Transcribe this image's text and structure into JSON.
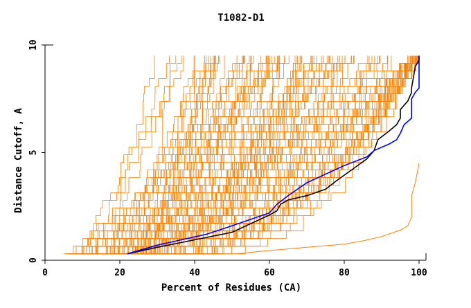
{
  "chart_data": {
    "type": "line",
    "title": "T1082-D1",
    "xlabel": "Percent of Residues (CA)",
    "ylabel": "Distance Cutoff, A",
    "xlim": [
      0,
      100
    ],
    "ylim": [
      0,
      10
    ],
    "x_ticks": [
      "0",
      "20",
      "40",
      "60",
      "80",
      "100"
    ],
    "y_ticks": [
      "0",
      "5",
      "10"
    ],
    "grid": false,
    "legend": "none",
    "colors": {
      "models": "#ff8000",
      "black_series": "#000000",
      "blue_series": "#0000ff",
      "axes": "#000000"
    },
    "background_models": {
      "count": 120,
      "y_max": 9.5,
      "note_shape": "many orange curves spanning x≈5–100, y 0.3–9.5"
    },
    "series": [
      {
        "color": "#000000",
        "x": [
          22,
          30,
          40,
          50,
          55,
          60,
          62,
          63,
          65,
          70,
          75,
          78,
          82,
          86,
          88,
          89,
          92,
          94,
          95,
          95,
          97,
          98,
          98,
          99,
          100,
          100
        ],
        "y": [
          0.3,
          0.6,
          0.95,
          1.3,
          1.7,
          2.1,
          2.3,
          2.6,
          2.8,
          3.0,
          3.3,
          3.7,
          4.2,
          4.7,
          5.1,
          5.6,
          6.0,
          6.3,
          6.6,
          7.0,
          7.4,
          7.8,
          8.0,
          9.0,
          9.3,
          9.5
        ]
      },
      {
        "color": "#0000ff",
        "x": [
          22,
          30,
          43,
          50,
          55,
          60,
          62,
          65,
          70,
          75,
          80,
          86,
          88,
          92,
          94,
          95,
          96,
          98,
          98,
          99,
          100,
          100,
          100
        ],
        "y": [
          0.3,
          0.7,
          1.2,
          1.6,
          1.9,
          2.2,
          2.6,
          3.0,
          3.6,
          4.0,
          4.4,
          4.8,
          5.1,
          5.4,
          5.6,
          5.9,
          6.3,
          6.6,
          7.5,
          7.8,
          8.0,
          9.0,
          9.5
        ]
      },
      {
        "color": "#ff8000",
        "x": [
          51,
          60,
          70,
          80,
          85,
          90,
          95,
          97,
          98,
          98,
          98,
          99,
          100
        ],
        "y": [
          0.3,
          0.45,
          0.6,
          0.75,
          0.9,
          1.1,
          1.4,
          1.6,
          2.0,
          2.5,
          3.0,
          3.6,
          4.5
        ]
      }
    ]
  }
}
